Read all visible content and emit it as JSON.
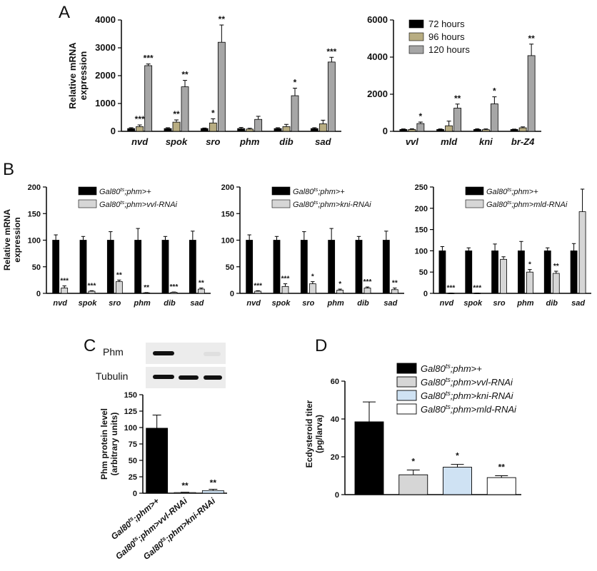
{
  "figure": {
    "panel_letters": [
      "A",
      "B",
      "C",
      "D"
    ]
  },
  "blot": {
    "labels": [
      "Phm",
      "Tubulin"
    ],
    "phm_band_intensity": [
      1.0,
      0.0,
      0.05
    ],
    "tubulin_band_intensity": [
      1.0,
      1.0,
      1.0
    ]
  },
  "colors": {
    "black": "#000000",
    "khaki": "#b8ad82",
    "gray": "#a6a6a6",
    "lightgray": "#d6d6d6",
    "lightblue": "#cfe2f3",
    "white": "#ffffff"
  },
  "chart_data": [
    {
      "panel": "A",
      "type": "bar",
      "ylabel": "Relative mRNA expression",
      "ylim": [
        0,
        4000
      ],
      "yticks": [
        0,
        1000,
        2000,
        3000,
        4000
      ],
      "categories": [
        "nvd",
        "spok",
        "sro",
        "phm",
        "dib",
        "sad"
      ],
      "series": [
        {
          "name": "72 hours",
          "color": "#000000",
          "values": [
            100,
            100,
            100,
            100,
            100,
            100
          ],
          "errors": [
            30,
            30,
            20,
            40,
            30,
            30
          ]
        },
        {
          "name": "96 hours",
          "color": "#b8ad82",
          "values": [
            170,
            330,
            300,
            80,
            170,
            270
          ],
          "errors": [
            60,
            80,
            150,
            30,
            80,
            130
          ]
        },
        {
          "name": "120 hours",
          "color": "#a6a6a6",
          "values": [
            2360,
            1600,
            3200,
            430,
            1280,
            2490
          ],
          "errors": [
            60,
            230,
            620,
            110,
            270,
            170
          ]
        }
      ],
      "annotations": [
        {
          "category": "nvd",
          "series": 1,
          "text": "***"
        },
        {
          "category": "nvd",
          "series": 2,
          "text": "***"
        },
        {
          "category": "spok",
          "series": 1,
          "text": "**"
        },
        {
          "category": "spok",
          "series": 2,
          "text": "**"
        },
        {
          "category": "sro",
          "series": 1,
          "text": "*"
        },
        {
          "category": "sro",
          "series": 2,
          "text": "**"
        },
        {
          "category": "dib",
          "series": 2,
          "text": "*"
        },
        {
          "category": "sad",
          "series": 2,
          "text": "***"
        }
      ]
    },
    {
      "panel": "A",
      "type": "bar",
      "ylim": [
        0,
        6000
      ],
      "yticks": [
        0,
        2000,
        4000,
        6000
      ],
      "categories": [
        "vvl",
        "mld",
        "kni",
        "br-Z4"
      ],
      "legend": {
        "placement": "top-left",
        "entries": [
          "72 hours",
          "96 hours",
          "120 hours"
        ]
      },
      "series": [
        {
          "name": "72 hours",
          "color": "#000000",
          "values": [
            100,
            100,
            100,
            100
          ],
          "errors": [
            30,
            30,
            40,
            20
          ]
        },
        {
          "name": "96 hours",
          "color": "#b8ad82",
          "values": [
            100,
            300,
            90,
            190
          ],
          "errors": [
            40,
            250,
            40,
            50
          ]
        },
        {
          "name": "120 hours",
          "color": "#a6a6a6",
          "values": [
            420,
            1250,
            1480,
            4080
          ],
          "errors": [
            80,
            220,
            380,
            620
          ]
        }
      ],
      "annotations": [
        {
          "category": "vvl",
          "series": 2,
          "text": "*"
        },
        {
          "category": "mld",
          "series": 2,
          "text": "**"
        },
        {
          "category": "kni",
          "series": 2,
          "text": "*"
        },
        {
          "category": "br-Z4",
          "series": 2,
          "text": "**"
        }
      ]
    },
    {
      "panel": "B",
      "type": "bar",
      "ylabel": "Relative mRNA expression",
      "ylim": [
        0,
        200
      ],
      "yticks": [
        0,
        50,
        100,
        150,
        200
      ],
      "categories": [
        "nvd",
        "spok",
        "sro",
        "phm",
        "dib",
        "sad"
      ],
      "legend": {
        "placement": "top",
        "entries": [
          "Gal80ts;phm>+",
          "Gal80ts;phm>vvl-RNAi"
        ]
      },
      "series": [
        {
          "name": "Gal80ts;phm>+",
          "color": "#000000",
          "values": [
            100,
            100,
            100,
            100,
            100,
            100
          ],
          "errors": [
            10,
            7,
            16,
            22,
            7,
            17
          ]
        },
        {
          "name": "Gal80ts;phm>vvl-RNAi",
          "color": "#d6d6d6",
          "values": [
            10,
            4,
            22,
            1,
            2,
            8
          ],
          "errors": [
            4,
            1,
            3,
            0.5,
            0.5,
            2
          ]
        }
      ],
      "annotations": [
        {
          "category": "nvd",
          "series": 1,
          "text": "***"
        },
        {
          "category": "spok",
          "series": 1,
          "text": "***"
        },
        {
          "category": "sro",
          "series": 1,
          "text": "**"
        },
        {
          "category": "phm",
          "series": 1,
          "text": "**"
        },
        {
          "category": "dib",
          "series": 1,
          "text": "***"
        },
        {
          "category": "sad",
          "series": 1,
          "text": "**"
        }
      ]
    },
    {
      "panel": "B",
      "type": "bar",
      "ylim": [
        0,
        200
      ],
      "yticks": [
        0,
        50,
        100,
        150,
        200
      ],
      "categories": [
        "nvd",
        "spok",
        "sro",
        "phm",
        "dib",
        "sad"
      ],
      "legend": {
        "placement": "top",
        "entries": [
          "Gal80ts;phm>+",
          "Gal80ts;phm>kni-RNAi"
        ]
      },
      "series": [
        {
          "name": "Gal80ts;phm>+",
          "color": "#000000",
          "values": [
            100,
            100,
            100,
            100,
            100,
            100
          ],
          "errors": [
            10,
            7,
            16,
            22,
            7,
            17
          ]
        },
        {
          "name": "Gal80ts;phm>kni-RNAi",
          "color": "#d6d6d6",
          "values": [
            4,
            13,
            18,
            6,
            10,
            7
          ],
          "errors": [
            1,
            5,
            4,
            2,
            2,
            3
          ]
        }
      ],
      "annotations": [
        {
          "category": "nvd",
          "series": 1,
          "text": "***"
        },
        {
          "category": "spok",
          "series": 1,
          "text": "***"
        },
        {
          "category": "sro",
          "series": 1,
          "text": "*"
        },
        {
          "category": "phm",
          "series": 1,
          "text": "*"
        },
        {
          "category": "dib",
          "series": 1,
          "text": "***"
        },
        {
          "category": "sad",
          "series": 1,
          "text": "**"
        }
      ]
    },
    {
      "panel": "B",
      "type": "bar",
      "ylim": [
        0,
        250
      ],
      "yticks": [
        0,
        50,
        100,
        150,
        200,
        250
      ],
      "categories": [
        "nvd",
        "spok",
        "sro",
        "phm",
        "dib",
        "sad"
      ],
      "legend": {
        "placement": "top",
        "entries": [
          "Gal80ts;phm>+",
          "Gal80ts;phm>mld-RNAi"
        ]
      },
      "series": [
        {
          "name": "Gal80ts;phm>+",
          "color": "#000000",
          "values": [
            100,
            100,
            100,
            100,
            100,
            100
          ],
          "errors": [
            10,
            7,
            16,
            22,
            7,
            17
          ]
        },
        {
          "name": "Gal80ts;phm>mld-RNAi",
          "color": "#d6d6d6",
          "values": [
            0.5,
            0.5,
            80,
            50,
            47,
            192
          ],
          "errors": [
            0.2,
            0.2,
            6,
            6,
            5,
            53
          ]
        }
      ],
      "annotations": [
        {
          "category": "nvd",
          "series": 1,
          "text": "***"
        },
        {
          "category": "spok",
          "series": 1,
          "text": "***"
        },
        {
          "category": "phm",
          "series": 1,
          "text": "*"
        },
        {
          "category": "dib",
          "series": 1,
          "text": "**"
        }
      ]
    },
    {
      "panel": "C",
      "type": "bar",
      "ylabel": "Phm protein level (arbitrary units)",
      "ylim": [
        0,
        150
      ],
      "yticks": [
        0,
        25,
        50,
        75,
        100,
        125,
        150
      ],
      "categories": [
        "Gal80ts;phm>+",
        "Gal80ts;phm>vvl-RNAi",
        "Gal80ts;phm>kni-RNAi"
      ],
      "colors": [
        "#000000",
        "#d6d6d6",
        "#cfe2f3"
      ],
      "values": [
        99,
        1,
        4
      ],
      "errors": [
        20,
        0.5,
        2
      ],
      "annotations": [
        {
          "index": 1,
          "text": "**"
        },
        {
          "index": 2,
          "text": "**"
        }
      ]
    },
    {
      "panel": "D",
      "type": "bar",
      "ylabel": "Ecdysteroid titer (pg/larva)",
      "ylim": [
        0,
        60
      ],
      "yticks": [
        0,
        20,
        40,
        60
      ],
      "categories": [
        "Gal80ts;phm>+",
        "Gal80ts;phm>vvl-RNAi",
        "Gal80ts;phm>kni-RNAi",
        "Gal80ts;phm>mld-RNAi"
      ],
      "legend": {
        "placement": "top-right",
        "entries": [
          "Gal80ts;phm>+",
          "Gal80ts;phm>vvl-RNAi",
          "Gal80ts;phm>kni-RNAi",
          "Gal80ts;phm>mld-RNAi"
        ]
      },
      "colors": [
        "#000000",
        "#d6d6d6",
        "#cfe2f3",
        "#ffffff"
      ],
      "values": [
        38.5,
        10.5,
        14.5,
        9
      ],
      "errors": [
        10.5,
        2.5,
        1.5,
        1
      ],
      "annotations": [
        {
          "index": 1,
          "text": "*"
        },
        {
          "index": 2,
          "text": "*"
        },
        {
          "index": 3,
          "text": "**"
        }
      ]
    }
  ]
}
